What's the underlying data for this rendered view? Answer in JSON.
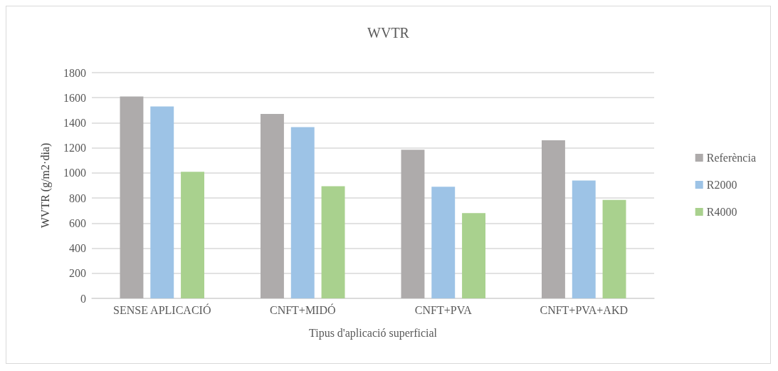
{
  "chart_data": {
    "type": "bar",
    "title": "WVTR",
    "xlabel": "Tipus d'aplicació superficial",
    "ylabel": "WVTR (g/m2·dia)",
    "categories": [
      "SENSE APLICACIÓ",
      "CNFT+MIDÓ",
      "CNFT+PVA",
      "CNFT+PVA+AKD"
    ],
    "series": [
      {
        "name": "Referència",
        "color": "#aeabab",
        "values": [
          1610,
          1470,
          1185,
          1260
        ]
      },
      {
        "name": "R2000",
        "color": "#9dc3e6",
        "values": [
          1530,
          1365,
          890,
          940
        ]
      },
      {
        "name": "R4000",
        "color": "#a9d18e",
        "values": [
          1010,
          895,
          680,
          785
        ]
      }
    ],
    "ylim": [
      0,
      1800
    ],
    "yticks": [
      0,
      200,
      400,
      600,
      800,
      1000,
      1200,
      1400,
      1600,
      1800
    ],
    "grid": "y",
    "legend": "right"
  }
}
